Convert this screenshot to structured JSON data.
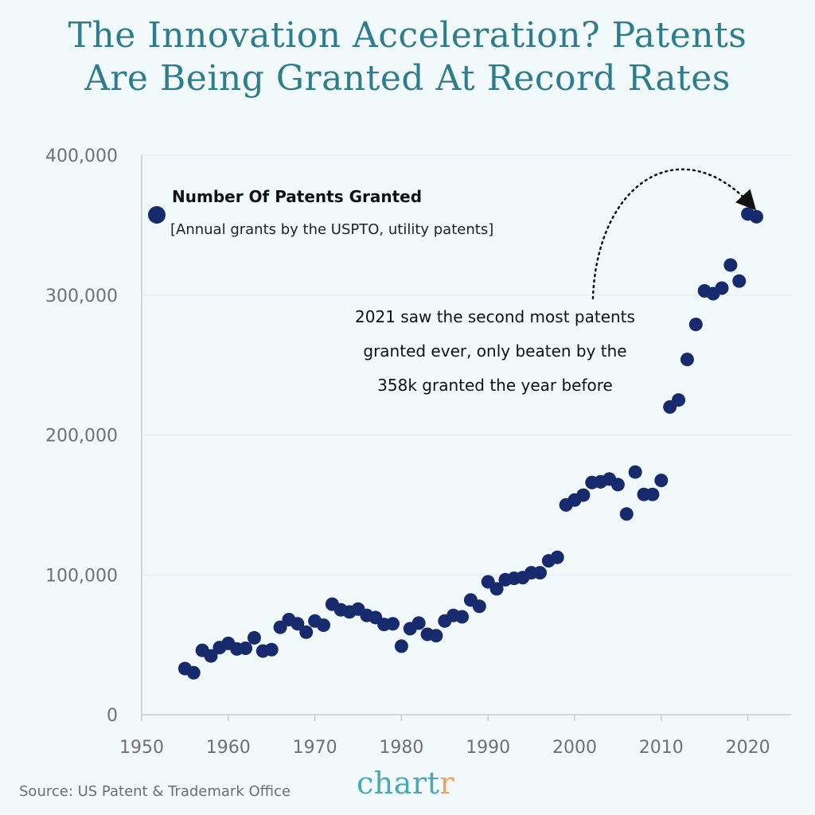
{
  "title_line1": "The Innovation Acceleration? Patents",
  "title_line2": "Are Being Granted At Record Rates",
  "source": "Source: US Patent & Trademark Office",
  "logo": {
    "main": "chart",
    "accent": "r"
  },
  "colors": {
    "background": "#f2f9fb",
    "title": "#2e7d8c",
    "dot": "#172a6e",
    "axis_text": "#707070",
    "logo": "#4aa9b8",
    "logo_accent": "#f0a35c"
  },
  "chart_data": {
    "type": "scatter",
    "title": "The Innovation Acceleration? Patents Are Being Granted At Record Rates",
    "xlabel": "",
    "ylabel": "",
    "xlim": [
      1950,
      2025
    ],
    "ylim": [
      0,
      400000
    ],
    "xticks": [
      1950,
      1960,
      1970,
      1980,
      1990,
      2000,
      2010,
      2020
    ],
    "yticks": [
      0,
      100000,
      200000,
      300000,
      400000
    ],
    "ytick_labels": [
      "0",
      "100,000",
      "200,000",
      "300,000",
      "400,000"
    ],
    "grid": "horizontal",
    "legend": {
      "title": "Number Of Patents Granted",
      "subtitle": "[Annual grants by the USPTO, utility patents]",
      "position": "top-left"
    },
    "annotation": {
      "lines": [
        "2021 saw the second most patents",
        "granted ever, only beaten by the",
        "358k granted the year before"
      ],
      "points_to": [
        2020.5,
        358000
      ]
    },
    "series": [
      {
        "name": "Number Of Patents Granted",
        "x": [
          1955,
          1956,
          1957,
          1958,
          1959,
          1960,
          1961,
          1962,
          1963,
          1964,
          1965,
          1966,
          1967,
          1968,
          1969,
          1970,
          1971,
          1972,
          1973,
          1974,
          1975,
          1976,
          1977,
          1978,
          1979,
          1980,
          1981,
          1982,
          1983,
          1984,
          1985,
          1986,
          1987,
          1988,
          1989,
          1990,
          1991,
          1992,
          1993,
          1994,
          1995,
          1996,
          1997,
          1998,
          1999,
          2000,
          2001,
          2002,
          2003,
          2004,
          2005,
          2006,
          2007,
          2008,
          2009,
          2010,
          2011,
          2012,
          2013,
          2014,
          2015,
          2016,
          2017,
          2018,
          2019,
          2020,
          2021
        ],
        "y": [
          33000,
          30000,
          46000,
          42000,
          48000,
          51000,
          47000,
          47500,
          55000,
          45500,
          46500,
          62500,
          68000,
          65000,
          59000,
          67000,
          64000,
          79000,
          75000,
          73500,
          75500,
          71000,
          69500,
          64500,
          65000,
          49000,
          61500,
          65500,
          57500,
          56500,
          67000,
          71000,
          70000,
          82000,
          77500,
          95000,
          90000,
          96500,
          97500,
          98000,
          101500,
          101500,
          110000,
          112500,
          150000,
          153500,
          157000,
          166000,
          166500,
          168500,
          164500,
          143500,
          173500,
          157500,
          157500,
          167500,
          220000,
          225000,
          254000,
          279000,
          303000,
          301000,
          305000,
          321500,
          310000,
          358000,
          356000
        ]
      }
    ]
  }
}
